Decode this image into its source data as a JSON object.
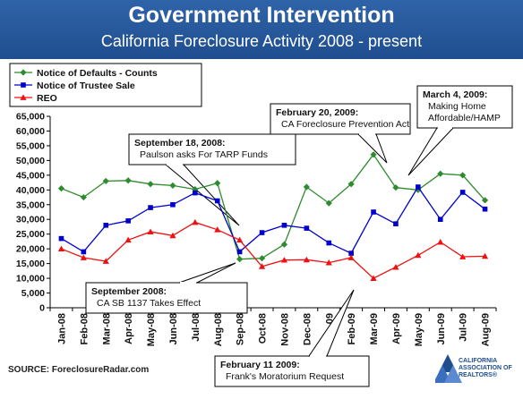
{
  "header": {
    "title": "Government Intervention",
    "subtitle": "California Foreclosure Activity 2008 - present"
  },
  "chart_data": {
    "type": "line",
    "categories": [
      "Jan-08",
      "Feb-08",
      "Mar-08",
      "Apr-08",
      "May-08",
      "Jun-08",
      "Jul-08",
      "Aug-08",
      "Sep-08",
      "Oct-08",
      "Nov-08",
      "Dec-08",
      "Jan-09",
      "Feb-09",
      "Mar-09",
      "Apr-09",
      "May-09",
      "Jun-09",
      "Jul-09",
      "Aug-09"
    ],
    "ylim": [
      0,
      65000
    ],
    "yticks": [
      "0",
      "5,000",
      "10,000",
      "15,000",
      "20,000",
      "25,000",
      "30,000",
      "35,000",
      "40,000",
      "45,000",
      "50,000",
      "55,000",
      "60,000",
      "65,000"
    ],
    "grid": false,
    "legend_position": "top-left",
    "series": [
      {
        "name": "Notice of Defaults - Counts",
        "color": "#2e8b2e",
        "marker": "diamond",
        "values": [
          40500,
          37500,
          43000,
          43200,
          42000,
          41500,
          40200,
          42300,
          16500,
          16800,
          21500,
          41000,
          35500,
          42000,
          52000,
          40800,
          40000,
          45500,
          45000,
          36500
        ]
      },
      {
        "name": "Notice of Trustee Sale",
        "color": "#0000cc",
        "marker": "square",
        "values": [
          23500,
          19000,
          28000,
          29500,
          34000,
          35000,
          39000,
          36300,
          19000,
          25500,
          28000,
          27000,
          22000,
          18500,
          32500,
          28500,
          41000,
          30000,
          39200,
          33500
        ]
      },
      {
        "name": "REO",
        "color": "#ee1111",
        "marker": "triangle",
        "values": [
          20000,
          17000,
          15800,
          23000,
          25800,
          24500,
          29000,
          26500,
          23000,
          14000,
          16200,
          16300,
          15300,
          17000,
          10000,
          13800,
          17800,
          22300,
          17300,
          17500
        ]
      }
    ],
    "annotations": [
      {
        "lines": [
          "September 18, 2008:",
          "Paulson asks For TARP Funds"
        ]
      },
      {
        "lines": [
          "September 2008:",
          "CA SB 1137 Takes Effect"
        ]
      },
      {
        "lines": [
          "February 20, 2009:",
          "CA Foreclosure Prevention Act"
        ]
      },
      {
        "lines": [
          "March 4, 2009:",
          "Making Home",
          "Affordable/HAMP"
        ]
      },
      {
        "lines": [
          "February 11 2009:",
          "Frank's Moratorium Request"
        ]
      }
    ]
  },
  "footer": {
    "source": "SOURCE: ForeclosureRadar.com",
    "logo_text": "CALIFORNIA ASSOCIATION OF REALTORS®"
  }
}
